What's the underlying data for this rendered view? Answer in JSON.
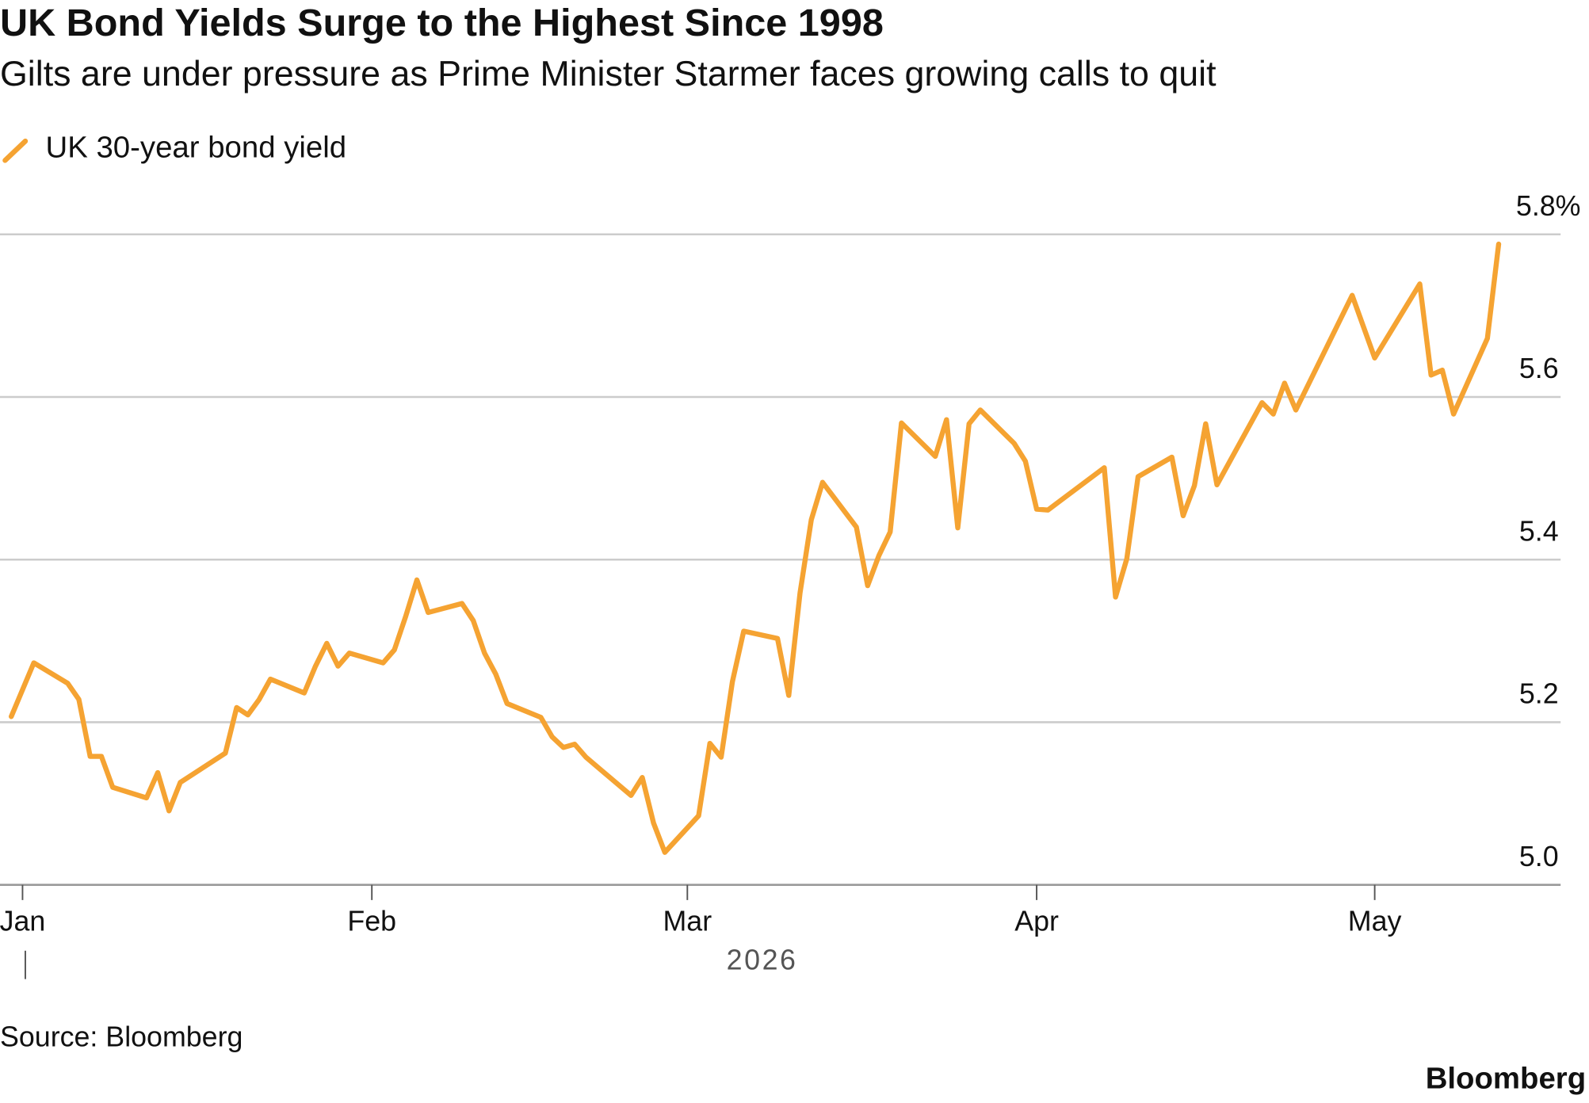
{
  "chart_data": {
    "type": "line",
    "title": "UK Bond Yields Surge to the Highest Since 1998",
    "subtitle": "Gilts are under pressure as Prime Minister Starmer faces growing calls to quit",
    "xlabel": "2026",
    "source": "Source: Bloomberg",
    "brand": "Bloomberg",
    "x": [
      0,
      2,
      5,
      6,
      7,
      8,
      9,
      12,
      13,
      14,
      15,
      19,
      20,
      21,
      22,
      23,
      26,
      27,
      28,
      29,
      30,
      33,
      34,
      35,
      36,
      37,
      40,
      41,
      42,
      43,
      44,
      47,
      48,
      49,
      50,
      51,
      55,
      56,
      57,
      58,
      61,
      62,
      63,
      64,
      65,
      68,
      69,
      70,
      71,
      72,
      75,
      76,
      77,
      78,
      79,
      82,
      83,
      84,
      85,
      86,
      89,
      90,
      91,
      92,
      97,
      98,
      99,
      100,
      103,
      104,
      105,
      106,
      107,
      111,
      112,
      113,
      114,
      119,
      121,
      125,
      126,
      127,
      128,
      131,
      132
    ],
    "series": [
      {
        "name": "UK 30-year bond yield",
        "color": "#f5a332",
        "values": [
          5.207,
          5.273,
          5.248,
          5.228,
          5.158,
          5.158,
          5.12,
          5.107,
          5.138,
          5.091,
          5.126,
          5.162,
          5.218,
          5.209,
          5.228,
          5.253,
          5.236,
          5.269,
          5.297,
          5.269,
          5.285,
          5.273,
          5.289,
          5.33,
          5.375,
          5.335,
          5.346,
          5.325,
          5.285,
          5.259,
          5.223,
          5.206,
          5.182,
          5.169,
          5.173,
          5.157,
          5.11,
          5.132,
          5.076,
          5.04,
          5.085,
          5.174,
          5.157,
          5.25,
          5.312,
          5.303,
          5.233,
          5.359,
          5.449,
          5.495,
          5.44,
          5.368,
          5.405,
          5.434,
          5.568,
          5.527,
          5.572,
          5.439,
          5.567,
          5.584,
          5.543,
          5.521,
          5.462,
          5.461,
          5.513,
          5.354,
          5.401,
          5.502,
          5.526,
          5.454,
          5.491,
          5.567,
          5.492,
          5.593,
          5.579,
          5.617,
          5.584,
          5.725,
          5.648,
          5.739,
          5.627,
          5.633,
          5.579,
          5.672,
          5.788
        ]
      }
    ],
    "xlim": [
      -1,
      137.5
    ],
    "xticks": [
      {
        "value": 1,
        "label": "Jan"
      },
      {
        "value": 32,
        "label": "Feb"
      },
      {
        "value": 60,
        "label": "Mar"
      },
      {
        "value": 91,
        "label": "Apr"
      },
      {
        "value": 121,
        "label": "May"
      }
    ],
    "ylim": [
      5.0,
      5.8
    ],
    "yticks": [
      {
        "value": 5,
        "label": "5.0"
      },
      5.2,
      5.4,
      5.6,
      {
        "value": 5.8,
        "label": "5.8%"
      }
    ],
    "grid": true
  }
}
